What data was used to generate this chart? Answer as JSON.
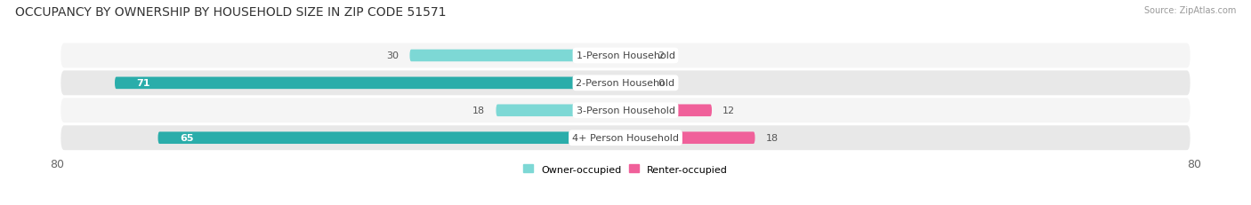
{
  "title": "OCCUPANCY BY OWNERSHIP BY HOUSEHOLD SIZE IN ZIP CODE 51571",
  "source": "Source: ZipAtlas.com",
  "categories": [
    "1-Person Household",
    "2-Person Household",
    "3-Person Household",
    "4+ Person Household"
  ],
  "owner_values": [
    30,
    71,
    18,
    65
  ],
  "renter_values": [
    2,
    0,
    12,
    18
  ],
  "owner_color_light": "#7DD8D5",
  "owner_color_dark": "#2AADAA",
  "renter_color_light": "#F8B8CC",
  "renter_color_dark": "#F0609A",
  "row_bg_color_light": "#F5F5F5",
  "row_bg_color_dark": "#E8E8E8",
  "xlim": [
    -80,
    80
  ],
  "legend_owner": "Owner-occupied",
  "legend_renter": "Renter-occupied",
  "title_fontsize": 10,
  "source_fontsize": 7,
  "label_fontsize": 8,
  "value_fontsize": 8,
  "tick_fontsize": 9
}
